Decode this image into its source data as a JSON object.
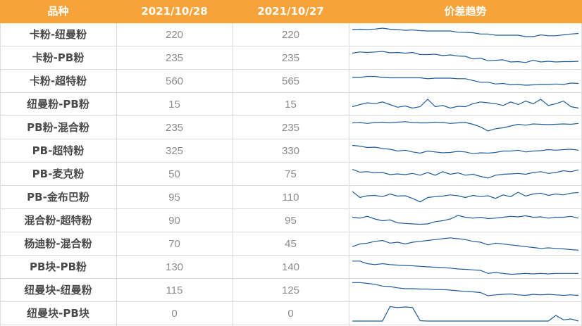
{
  "header": {
    "col_name": "品种",
    "col_date1": "2021/10/28",
    "col_date2": "2021/10/27",
    "col_trend": "价差趋势"
  },
  "colors": {
    "header_bg": "#f7a33a",
    "trend_line": "#1f5c99"
  },
  "chart_data": {
    "type": "table",
    "columns": [
      "品种",
      "2021/10/28",
      "2021/10/27",
      "价差趋势"
    ],
    "rows": [
      {
        "name": "卡粉-纽曼粉",
        "v1": "220",
        "v2": "220",
        "trend": [
          0.2,
          0.18,
          0.19,
          0.17,
          0.12,
          0.18,
          0.2,
          0.24,
          0.22,
          0.26,
          0.28,
          0.28,
          0.28,
          0.28,
          0.35,
          0.36,
          0.38,
          0.45,
          0.45,
          0.52,
          0.52,
          0.52,
          0.52,
          0.6,
          0.6,
          0.5,
          0.55,
          0.55,
          0.5,
          0.45,
          0.42
        ]
      },
      {
        "name": "卡粉-PB粉",
        "v1": "235",
        "v2": "235",
        "trend": [
          0.22,
          0.15,
          0.18,
          0.15,
          0.12,
          0.2,
          0.18,
          0.22,
          0.18,
          0.3,
          0.3,
          0.28,
          0.36,
          0.32,
          0.38,
          0.4,
          0.55,
          0.5,
          0.65,
          0.62,
          0.6,
          0.72,
          0.7,
          0.75,
          0.62,
          0.72,
          0.68,
          0.72,
          0.7,
          0.7,
          0.68
        ]
      },
      {
        "name": "卡粉-超特粉",
        "v1": "560",
        "v2": "565",
        "trend": [
          0.28,
          0.28,
          0.22,
          0.22,
          0.28,
          0.3,
          0.3,
          0.3,
          0.3,
          0.3,
          0.35,
          0.32,
          0.32,
          0.32,
          0.35,
          0.35,
          0.45,
          0.55,
          0.55,
          0.65,
          0.62,
          0.7,
          0.68,
          0.72,
          0.7,
          0.68,
          0.68,
          0.65,
          0.68,
          0.6,
          0.62
        ]
      },
      {
        "name": "纽曼粉-PB粉",
        "v1": "15",
        "v2": "15",
        "trend": [
          0.62,
          0.5,
          0.4,
          0.45,
          0.35,
          0.5,
          0.65,
          0.58,
          0.7,
          0.62,
          0.2,
          0.62,
          0.55,
          0.7,
          0.6,
          0.62,
          0.45,
          0.35,
          0.4,
          0.45,
          0.55,
          0.35,
          0.5,
          0.3,
          0.45,
          0.2,
          0.55,
          0.45,
          0.3,
          0.62,
          0.7
        ]
      },
      {
        "name": "PB粉-混合粉",
        "v1": "235",
        "v2": "235",
        "trend": [
          0.22,
          0.2,
          0.25,
          0.2,
          0.18,
          0.22,
          0.18,
          0.15,
          0.2,
          0.22,
          0.22,
          0.18,
          0.2,
          0.25,
          0.22,
          0.2,
          0.3,
          0.45,
          0.68,
          0.55,
          0.5,
          0.4,
          0.3,
          0.35,
          0.28,
          0.3,
          0.32,
          0.3,
          0.28,
          0.3,
          0.25
        ]
      },
      {
        "name": "PB-超特粉",
        "v1": "325",
        "v2": "330",
        "trend": [
          0.18,
          0.22,
          0.3,
          0.28,
          0.35,
          0.4,
          0.5,
          0.45,
          0.55,
          0.62,
          0.5,
          0.55,
          0.6,
          0.58,
          0.52,
          0.55,
          0.65,
          0.6,
          0.62,
          0.58,
          0.5,
          0.5,
          0.45,
          0.55,
          0.5,
          0.48,
          0.42,
          0.45,
          0.42,
          0.4,
          0.45
        ]
      },
      {
        "name": "PB-麦克粉",
        "v1": "50",
        "v2": "75",
        "trend": [
          0.22,
          0.38,
          0.35,
          0.42,
          0.4,
          0.52,
          0.48,
          0.52,
          0.45,
          0.55,
          0.4,
          0.55,
          0.35,
          0.5,
          0.42,
          0.55,
          0.5,
          0.62,
          0.72,
          0.55,
          0.5,
          0.48,
          0.45,
          0.5,
          0.4,
          0.35,
          0.45,
          0.4,
          0.3,
          0.35,
          0.25
        ]
      },
      {
        "name": "PB-金布巴粉",
        "v1": "95",
        "v2": "110",
        "trend": [
          0.15,
          0.5,
          0.4,
          0.38,
          0.45,
          0.3,
          0.42,
          0.4,
          0.55,
          0.75,
          0.5,
          0.45,
          0.42,
          0.35,
          0.4,
          0.5,
          0.38,
          0.45,
          0.4,
          0.55,
          0.35,
          0.45,
          0.2,
          0.42,
          0.3,
          0.25,
          0.38,
          0.3,
          0.35,
          0.25,
          0.22
        ]
      },
      {
        "name": "混合粉-超特粉",
        "v1": "90",
        "v2": "95",
        "trend": [
          0.3,
          0.35,
          0.25,
          0.4,
          0.5,
          0.45,
          0.62,
          0.65,
          0.68,
          0.7,
          0.68,
          0.55,
          0.5,
          0.4,
          0.2,
          0.3,
          0.35,
          0.3,
          0.38,
          0.35,
          0.3,
          0.25,
          0.28,
          0.22,
          0.3,
          0.28,
          0.35,
          0.3,
          0.3,
          0.25,
          0.35
        ]
      },
      {
        "name": "杨迪粉-混合粉",
        "v1": "70",
        "v2": "45",
        "trend": [
          0.65,
          0.5,
          0.45,
          0.35,
          0.3,
          0.45,
          0.4,
          0.5,
          0.4,
          0.35,
          0.3,
          0.25,
          0.2,
          0.15,
          0.2,
          0.25,
          0.35,
          0.4,
          0.55,
          0.45,
          0.5,
          0.55,
          0.6,
          0.65,
          0.7,
          0.75,
          0.72,
          0.75,
          0.78,
          0.82,
          0.85
        ]
      },
      {
        "name": "PB块-PB粉",
        "v1": "130",
        "v2": "140",
        "trend": [
          0.15,
          0.15,
          0.3,
          0.35,
          0.3,
          0.35,
          0.38,
          0.4,
          0.42,
          0.45,
          0.48,
          0.5,
          0.52,
          0.55,
          0.6,
          0.62,
          0.65,
          0.68,
          0.85,
          0.8,
          0.85,
          0.9,
          0.88,
          0.85,
          0.88,
          0.85,
          0.88,
          0.85,
          0.85,
          0.85,
          0.85
        ]
      },
      {
        "name": "纽曼块-纽曼粉",
        "v1": "115",
        "v2": "125",
        "trend": [
          0.05,
          0.05,
          0.1,
          0.15,
          0.25,
          0.28,
          0.35,
          0.4,
          0.4,
          0.42,
          0.42,
          0.45,
          0.45,
          0.48,
          0.52,
          0.55,
          0.58,
          0.62,
          0.8,
          0.75,
          0.72,
          0.7,
          0.75,
          0.78,
          0.72,
          0.75,
          0.72,
          0.75,
          0.78,
          0.75,
          0.78
        ]
      },
      {
        "name": "纽曼块-PB块",
        "v1": "0",
        "v2": "0",
        "trend": [
          0.92,
          0.92,
          0.92,
          0.92,
          0.92,
          0.1,
          0.15,
          0.12,
          0.15,
          0.9,
          0.92,
          0.92,
          0.92,
          0.92,
          0.92,
          0.92,
          0.92,
          0.92,
          0.92,
          0.92,
          0.92,
          0.92,
          0.92,
          0.92,
          0.92,
          0.92,
          0.92,
          0.6,
          0.85,
          0.8,
          0.92
        ]
      }
    ]
  }
}
